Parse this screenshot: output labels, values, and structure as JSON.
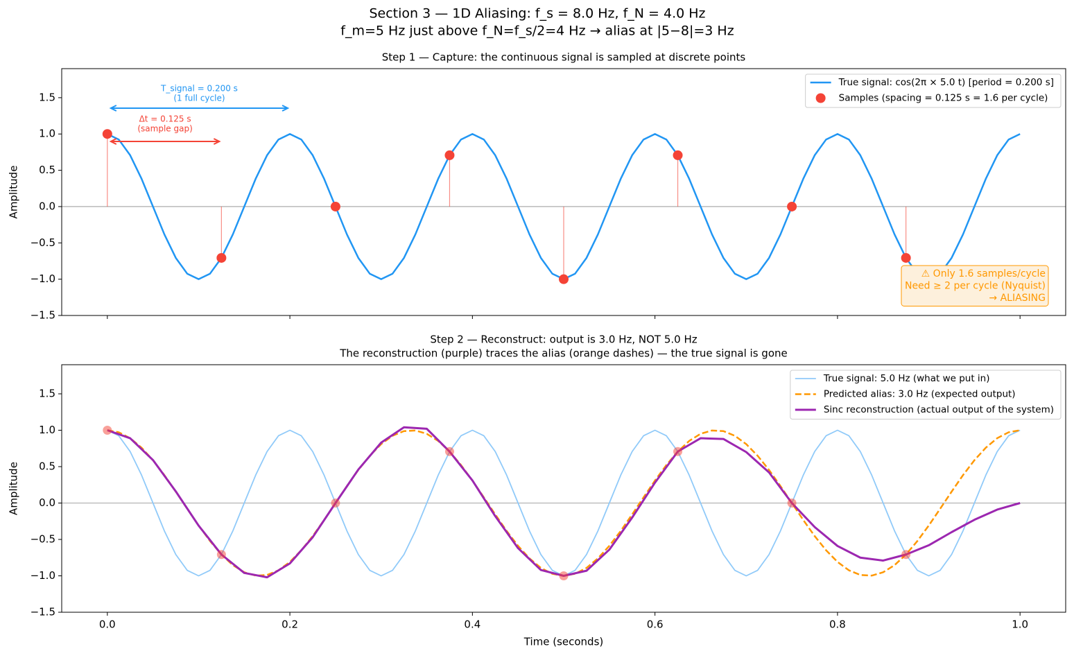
{
  "title": "Section 3 — 1D Aliasing:  f_s = 8.0 Hz,  f_N = 4.0 Hz",
  "subtitle": "f_m=5 Hz  just above f_N=f_s/2=4 Hz → alias at |5−8|=3 Hz",
  "chart_data": [
    {
      "type": "line",
      "title": "Step 1 — Capture: the continuous signal is sampled at discrete points",
      "ylabel": "Amplitude",
      "xlim": [
        -0.05,
        1.05
      ],
      "ylim": [
        -1.5,
        1.9
      ],
      "xticks": [
        0,
        0.2,
        0.4,
        0.6,
        0.8,
        1
      ],
      "yticks": [
        {
          "value": -1.5,
          "label": "−1.5"
        },
        {
          "value": -1,
          "label": "−1.0"
        },
        {
          "value": -0.5,
          "label": "−0.5"
        },
        {
          "value": 0,
          "label": "0.0"
        },
        {
          "value": 0.5,
          "label": "0.5"
        },
        {
          "value": 1,
          "label": "1.0"
        },
        {
          "value": 1.5,
          "label": "1.5"
        }
      ],
      "zero_line": true,
      "legend": "upper right",
      "x": [
        0,
        0.0125,
        0.025,
        0.0375,
        0.05,
        0.0625,
        0.075,
        0.0875,
        0.1,
        0.1125,
        0.125,
        0.1375,
        0.15,
        0.1625,
        0.175,
        0.1875,
        0.2,
        0.2125,
        0.225,
        0.2375,
        0.25,
        0.2625,
        0.275,
        0.2875,
        0.3,
        0.3125,
        0.325,
        0.3375,
        0.35,
        0.3625,
        0.375,
        0.3875,
        0.4,
        0.4125,
        0.425,
        0.4375,
        0.45,
        0.4625,
        0.475,
        0.4875,
        0.5,
        0.5125,
        0.525,
        0.5375,
        0.55,
        0.5625,
        0.575,
        0.5875,
        0.6,
        0.6125,
        0.625,
        0.6375,
        0.65,
        0.6625,
        0.675,
        0.6875,
        0.7,
        0.7125,
        0.725,
        0.7375,
        0.75,
        0.7625,
        0.775,
        0.7875,
        0.8,
        0.8125,
        0.825,
        0.8375,
        0.85,
        0.8625,
        0.875,
        0.8875,
        0.9,
        0.9125,
        0.925,
        0.9375,
        0.95,
        0.9625,
        0.975,
        0.9875,
        1
      ],
      "series": [
        {
          "name": "True signal: cos(2π × 5.0 t)   [period = 0.200 s]",
          "type": "line",
          "color": "#2196f3",
          "width": 2.5,
          "values": [
            1,
            0.924,
            0.707,
            0.383,
            0,
            -0.383,
            -0.707,
            -0.924,
            -1,
            -0.924,
            -0.707,
            -0.383,
            0,
            0.383,
            0.707,
            0.924,
            1,
            0.924,
            0.707,
            0.383,
            0,
            -0.383,
            -0.707,
            -0.924,
            -1,
            -0.924,
            -0.707,
            -0.383,
            0,
            0.383,
            0.707,
            0.924,
            1,
            0.924,
            0.707,
            0.383,
            0,
            -0.383,
            -0.707,
            -0.924,
            -1,
            -0.924,
            -0.707,
            -0.383,
            0,
            0.383,
            0.707,
            0.924,
            1,
            0.924,
            0.707,
            0.383,
            0,
            -0.383,
            -0.707,
            -0.924,
            -1,
            -0.924,
            -0.707,
            -0.383,
            0,
            0.383,
            0.707,
            0.924,
            1,
            0.924,
            0.707,
            0.383,
            0,
            -0.383,
            -0.707,
            -0.924,
            -1,
            -0.924,
            -0.707,
            -0.383,
            0,
            0.383,
            0.707,
            0.924,
            1
          ]
        },
        {
          "name": "Samples  (spacing = 0.125 s = 1.6 per cycle)",
          "type": "scatter",
          "color": "#f44336",
          "stems": true,
          "x": [
            0,
            0.125,
            0.25,
            0.375,
            0.5,
            0.625,
            0.75,
            0.875
          ],
          "values": [
            1,
            -0.707,
            0,
            0.707,
            -1,
            0.707,
            0,
            -0.707
          ]
        }
      ],
      "annotations": [
        {
          "lines": [
            "T_signal = 0.200 s",
            "(1 full cycle)"
          ],
          "color": "#2196f3"
        },
        {
          "lines": [
            "Δt = 0.125 s",
            "(sample gap)"
          ],
          "color": "#f44336"
        }
      ],
      "note": {
        "lines": [
          "⚠  Only 1.6 samples/cycle",
          "Need ≥ 2 per cycle (Nyquist)",
          "→ ALIASING"
        ],
        "color": "#ff9800"
      }
    },
    {
      "type": "line",
      "title": "Step 2 — Reconstruct: output is 3.0 Hz, NOT 5.0 Hz",
      "subtitle": "The reconstruction (purple) traces the alias (orange dashes) — the true signal is gone",
      "xlabel": "Time (seconds)",
      "ylabel": "Amplitude",
      "xlim": [
        -0.05,
        1.05
      ],
      "ylim": [
        -1.5,
        1.9
      ],
      "xticks": [
        {
          "value": 0,
          "label": "0.0"
        },
        {
          "value": 0.2,
          "label": "0.2"
        },
        {
          "value": 0.4,
          "label": "0.4"
        },
        {
          "value": 0.6,
          "label": "0.6"
        },
        {
          "value": 0.8,
          "label": "0.8"
        },
        {
          "value": 1,
          "label": "1.0"
        }
      ],
      "yticks": [
        {
          "value": -1.5,
          "label": "−1.5"
        },
        {
          "value": -1,
          "label": "−1.0"
        },
        {
          "value": -0.5,
          "label": "−0.5"
        },
        {
          "value": 0,
          "label": "0.0"
        },
        {
          "value": 0.5,
          "label": "0.5"
        },
        {
          "value": 1,
          "label": "1.0"
        },
        {
          "value": 1.5,
          "label": "1.5"
        }
      ],
      "zero_line": true,
      "legend": "upper right",
      "x": [
        0,
        0.0125,
        0.025,
        0.0375,
        0.05,
        0.0625,
        0.075,
        0.0875,
        0.1,
        0.1125,
        0.125,
        0.1375,
        0.15,
        0.1625,
        0.175,
        0.1875,
        0.2,
        0.2125,
        0.225,
        0.2375,
        0.25,
        0.2625,
        0.275,
        0.2875,
        0.3,
        0.3125,
        0.325,
        0.3375,
        0.35,
        0.3625,
        0.375,
        0.3875,
        0.4,
        0.4125,
        0.425,
        0.4375,
        0.45,
        0.4625,
        0.475,
        0.4875,
        0.5,
        0.5125,
        0.525,
        0.5375,
        0.55,
        0.5625,
        0.575,
        0.5875,
        0.6,
        0.6125,
        0.625,
        0.6375,
        0.65,
        0.6625,
        0.675,
        0.6875,
        0.7,
        0.7125,
        0.725,
        0.7375,
        0.75,
        0.7625,
        0.775,
        0.7875,
        0.8,
        0.8125,
        0.825,
        0.8375,
        0.85,
        0.8625,
        0.875,
        0.8875,
        0.9,
        0.9125,
        0.925,
        0.9375,
        0.95,
        0.9625,
        0.975,
        0.9875,
        1
      ],
      "series": [
        {
          "name": "True signal: 5.0 Hz  (what we put in)",
          "type": "line",
          "color": "#90caf9",
          "width": 1.8,
          "values": [
            1,
            0.924,
            0.707,
            0.383,
            0,
            -0.383,
            -0.707,
            -0.924,
            -1,
            -0.924,
            -0.707,
            -0.383,
            0,
            0.383,
            0.707,
            0.924,
            1,
            0.924,
            0.707,
            0.383,
            0,
            -0.383,
            -0.707,
            -0.924,
            -1,
            -0.924,
            -0.707,
            -0.383,
            0,
            0.383,
            0.707,
            0.924,
            1,
            0.924,
            0.707,
            0.383,
            0,
            -0.383,
            -0.707,
            -0.924,
            -1,
            -0.924,
            -0.707,
            -0.383,
            0,
            0.383,
            0.707,
            0.924,
            1,
            0.924,
            0.707,
            0.383,
            0,
            -0.383,
            -0.707,
            -0.924,
            -1,
            -0.924,
            -0.707,
            -0.383,
            0,
            0.383,
            0.707,
            0.924,
            1,
            0.924,
            0.707,
            0.383,
            0,
            -0.383,
            -0.707,
            -0.924,
            -1,
            -0.924,
            -0.707,
            -0.383,
            0,
            0.383,
            0.707,
            0.924,
            1
          ]
        },
        {
          "name": "Predicted alias: 3.0 Hz  (expected output)",
          "type": "line",
          "color": "#ff9800",
          "width": 2.5,
          "dashed": true,
          "values": [
            1,
            0.972,
            0.891,
            0.76,
            0.588,
            0.383,
            0.156,
            -0.078,
            -0.309,
            -0.522,
            -0.707,
            -0.853,
            -0.951,
            -0.997,
            -0.988,
            -0.924,
            -0.809,
            -0.649,
            -0.454,
            -0.233,
            0,
            0.233,
            0.454,
            0.649,
            0.809,
            0.924,
            0.988,
            0.997,
            0.951,
            0.853,
            0.707,
            0.522,
            0.309,
            0.078,
            -0.156,
            -0.383,
            -0.588,
            -0.76,
            -0.891,
            -0.972,
            -1,
            -0.972,
            -0.891,
            -0.76,
            -0.588,
            -0.383,
            -0.156,
            0.078,
            0.309,
            0.522,
            0.707,
            0.853,
            0.951,
            0.997,
            0.988,
            0.924,
            0.809,
            0.649,
            0.454,
            0.233,
            0,
            -0.233,
            -0.454,
            -0.649,
            -0.809,
            -0.924,
            -0.988,
            -0.997,
            -0.951,
            -0.853,
            -0.707,
            -0.522,
            -0.309,
            -0.078,
            0.156,
            0.383,
            0.588,
            0.76,
            0.891,
            0.972,
            1
          ]
        },
        {
          "name": "Sinc reconstruction  (actual output of the system)",
          "type": "line",
          "color": "#9c27b0",
          "width": 3,
          "x": [
            0,
            0.025,
            0.05,
            0.075,
            0.1,
            0.125,
            0.15,
            0.175,
            0.2,
            0.225,
            0.25,
            0.275,
            0.3,
            0.325,
            0.35,
            0.375,
            0.4,
            0.425,
            0.45,
            0.475,
            0.5,
            0.525,
            0.55,
            0.575,
            0.6,
            0.625,
            0.65,
            0.675,
            0.7,
            0.725,
            0.75,
            0.775,
            0.8,
            0.825,
            0.85,
            0.875,
            0.9,
            0.925,
            0.95,
            0.975,
            1
          ],
          "values": [
            1,
            0.89,
            0.59,
            0.16,
            -0.31,
            -0.707,
            -0.96,
            -1.02,
            -0.83,
            -0.47,
            0,
            0.46,
            0.83,
            1.04,
            1.02,
            0.707,
            0.31,
            -0.18,
            -0.62,
            -0.92,
            -1,
            -0.93,
            -0.64,
            -0.2,
            0.28,
            0.707,
            0.89,
            0.88,
            0.7,
            0.42,
            0,
            -0.33,
            -0.59,
            -0.75,
            -0.79,
            -0.707,
            -0.58,
            -0.4,
            -0.23,
            -0.09,
            0
          ]
        }
      ],
      "markers": {
        "x": [
          0,
          0.125,
          0.25,
          0.375,
          0.5,
          0.625,
          0.75,
          0.875
        ],
        "values": [
          1,
          -0.707,
          0,
          0.707,
          -1,
          0.707,
          0,
          -0.707
        ],
        "color": "#f44336",
        "opacity": 0.5
      }
    }
  ]
}
